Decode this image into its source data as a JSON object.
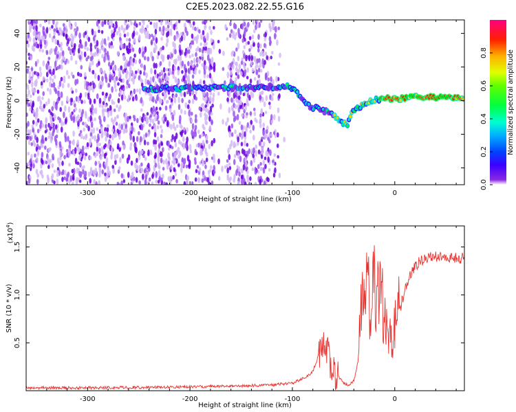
{
  "title": "C2E5.2023.082.22.55.G16",
  "colors": {
    "spectrum_low": "#7b2fe0",
    "spectrum_mid": "#00e000",
    "spectrum_high": "#ff0000",
    "snr_line": "#e8322e"
  },
  "chart_data": [
    {
      "type": "heatmap",
      "xlabel": "Height of straight line (km)",
      "ylabel": "Frequency (Hz)",
      "xlim": [
        -360,
        68
      ],
      "ylim": [
        -50,
        48
      ],
      "x_ticks": [
        -300,
        -200,
        -100,
        0
      ],
      "x_tick_labels": [
        "-300",
        "-200",
        "-100",
        "0"
      ],
      "y_ticks": [
        -40,
        -20,
        0,
        20,
        40
      ],
      "y_tick_labels": [
        "-40",
        "-20",
        "0",
        "20",
        "40"
      ],
      "ridge": {
        "x": [
          -245,
          -200,
          -150,
          -120,
          -105,
          -95,
          -85,
          -75,
          -65,
          -58,
          -52,
          -46,
          -42,
          -38,
          -32,
          -25,
          -20,
          -15,
          -10,
          -5,
          0,
          10,
          20,
          40,
          68
        ],
        "y": [
          7,
          7.5,
          7.5,
          8,
          9,
          5,
          -3,
          -5,
          -7,
          -10,
          -13,
          -14,
          -8,
          -5,
          -3,
          -1,
          0,
          1,
          2,
          1,
          1,
          1.5,
          2,
          2,
          2
        ]
      },
      "colorbar": {
        "label": "Normalized spectral amplitude",
        "range": [
          0,
          1
        ],
        "ticks": [
          0.0,
          0.2,
          0.4,
          0.6,
          0.8
        ],
        "tick_labels": [
          "0.0",
          "0.2",
          "0.4",
          "0.6",
          "0.8"
        ]
      }
    },
    {
      "type": "line",
      "xlabel": "Height of straight line (km)",
      "ylabel": "SNR (10 * v/v)",
      "y_multiplier": "(x10",
      "y_multiplier_exp": "4",
      "y_multiplier_close": ")",
      "xlim": [
        -360,
        68
      ],
      "ylim": [
        0,
        1.72
      ],
      "x_ticks": [
        -300,
        -200,
        -100,
        0
      ],
      "x_tick_labels": [
        "-300",
        "-200",
        "-100",
        "0"
      ],
      "y_ticks": [
        0.5,
        1.0,
        1.5
      ],
      "y_tick_labels": [
        "0.5",
        "1.0",
        "1.5"
      ],
      "series": [
        {
          "x": [
            -360,
            -300,
            -250,
            -200,
            -150,
            -120,
            -100,
            -85,
            -80,
            -75,
            -70,
            -66,
            -62,
            -55,
            -50,
            -45,
            -40,
            -36,
            -33,
            -30,
            -28,
            -26,
            -24,
            -22,
            -20,
            -18,
            -15,
            -12,
            -10,
            -8,
            -5,
            0,
            5,
            10,
            15,
            20,
            25,
            30,
            40,
            50,
            60,
            68
          ],
          "y": [
            0.03,
            0.03,
            0.035,
            0.04,
            0.05,
            0.06,
            0.08,
            0.15,
            0.2,
            0.35,
            0.55,
            0.45,
            0.25,
            0.15,
            0.08,
            0.06,
            0.1,
            0.3,
            0.7,
            0.9,
            1.0,
            1.05,
            0.95,
            1.2,
            1.1,
            0.9,
            1.0,
            0.85,
            0.75,
            0.7,
            0.8,
            0.65,
            0.85,
            1.05,
            1.2,
            1.3,
            1.35,
            1.38,
            1.4,
            1.4,
            1.38,
            1.38
          ]
        }
      ]
    }
  ]
}
